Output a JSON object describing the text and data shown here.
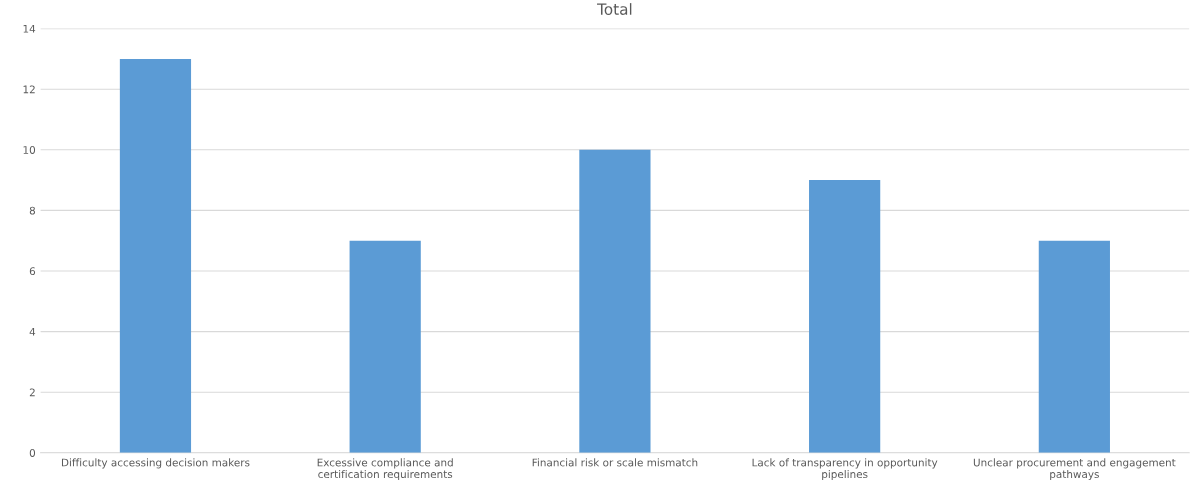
{
  "chart_data": {
    "type": "bar",
    "title": "Total",
    "categories": [
      "Difficulty accessing decision makers",
      "Excessive compliance and certification requirements",
      "Financial risk or scale mismatch",
      "Lack of transparency in opportunity pipelines",
      "Unclear procurement and engagement pathways"
    ],
    "values": [
      13,
      7,
      10,
      9,
      7
    ],
    "color": "#5b9bd5",
    "ylim": [
      0,
      14
    ],
    "yticks": [
      0,
      2,
      4,
      6,
      8,
      10,
      12,
      14
    ],
    "grid": "y",
    "legend": false
  }
}
